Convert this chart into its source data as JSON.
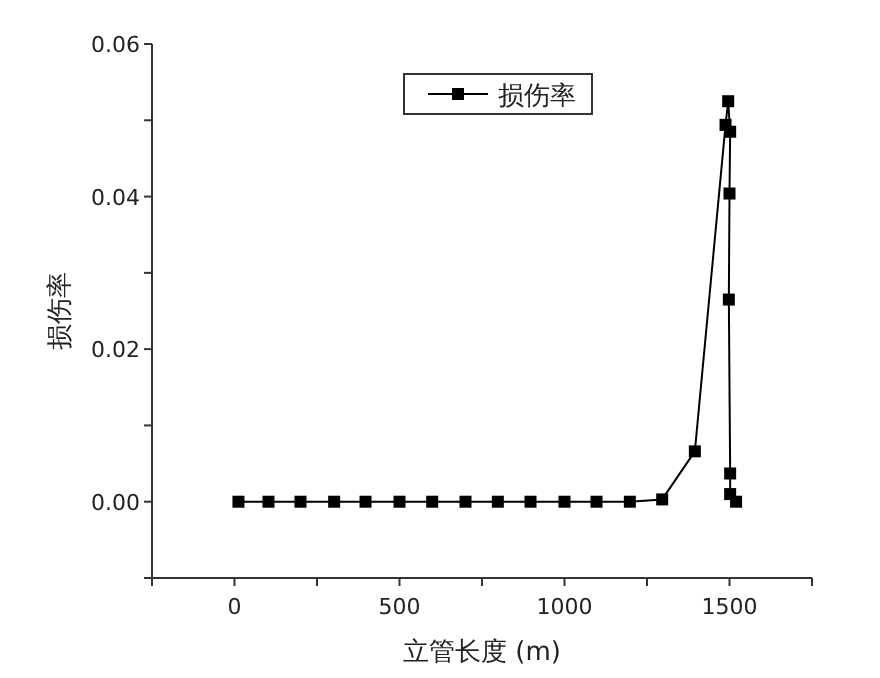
{
  "chart_data": {
    "type": "line",
    "xlabel": "立管长度 (m)",
    "ylabel": "损伤率",
    "x": [
      12,
      103,
      200,
      302,
      397,
      500,
      599,
      700,
      798,
      897,
      1000,
      1097,
      1198,
      1296,
      1395,
      1488,
      1496,
      1502,
      1500,
      1498,
      1502,
      1502,
      1520
    ],
    "series": [
      {
        "name": "损伤率",
        "color": "#000000",
        "values": [
          0,
          0,
          0,
          0,
          0,
          0,
          0,
          0,
          0,
          0,
          0,
          0,
          0,
          0.0003,
          0.0066,
          0.0494,
          0.0525,
          0.0485,
          0.0404,
          0.0265,
          0.0037,
          0.001,
          0
        ]
      }
    ],
    "xlim": [
      -250,
      1750
    ],
    "ylim": [
      -0.01,
      0.06
    ],
    "xticks": [
      {
        "value": -250,
        "label": null
      },
      0,
      {
        "value": 250,
        "label": null
      },
      500,
      {
        "value": 750,
        "label": null
      },
      1000,
      {
        "value": 1250,
        "label": null
      },
      1500,
      {
        "value": 1750,
        "label": null
      }
    ],
    "yticks": [
      {
        "value": -0.01,
        "label": null
      },
      {
        "value": 0,
        "label": "0.00"
      },
      {
        "value": 0.01,
        "label": null
      },
      {
        "value": 0.02,
        "label": "0.02"
      },
      {
        "value": 0.03,
        "label": null
      },
      {
        "value": 0.04,
        "label": "0.04"
      },
      {
        "value": 0.05,
        "label": null
      },
      {
        "value": 0.06,
        "label": "0.06"
      }
    ],
    "marker": "square",
    "line_style": "solid",
    "legend": "top",
    "grid": false
  }
}
